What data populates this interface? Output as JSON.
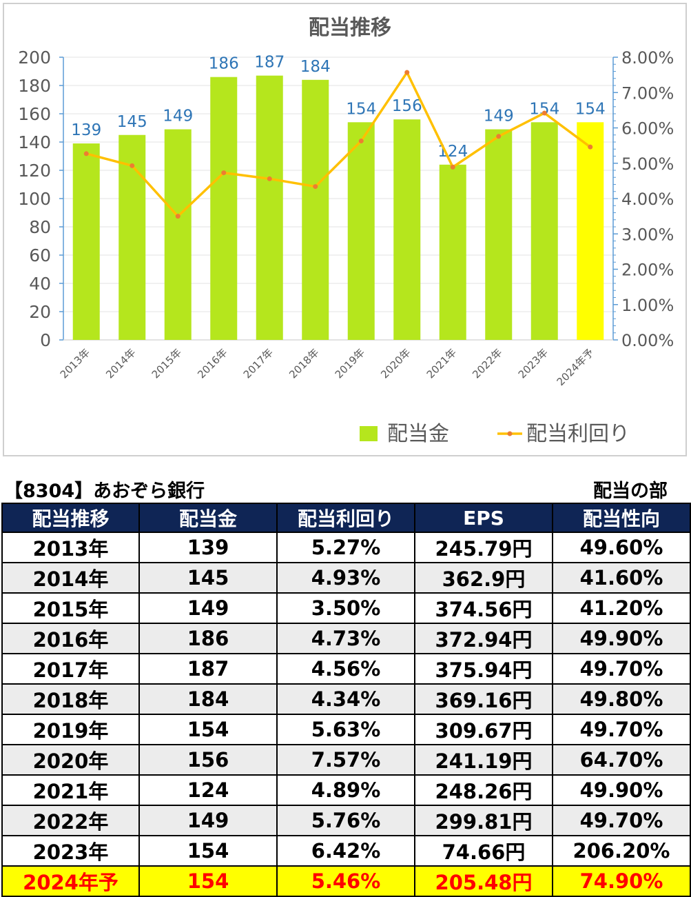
{
  "chart_data": {
    "type": "bar",
    "title": "配当推移",
    "categories": [
      "2013年",
      "2014年",
      "2015年",
      "2016年",
      "2017年",
      "2018年",
      "2019年",
      "2020年",
      "2021年",
      "2022年",
      "2023年",
      "2024年予"
    ],
    "series": [
      {
        "name": "配当金",
        "type": "bar",
        "axis": "left",
        "values": [
          139,
          145,
          149,
          186,
          187,
          184,
          154,
          156,
          124,
          149,
          154,
          154
        ],
        "color": "#b5e61d",
        "highlight_color": "#ffff00",
        "highlight_index": 11
      },
      {
        "name": "配当利回り",
        "type": "line",
        "axis": "right",
        "values": [
          5.27,
          4.93,
          3.5,
          4.73,
          4.56,
          4.34,
          5.63,
          7.57,
          4.89,
          5.76,
          6.42,
          5.46
        ],
        "color": "#ffc000",
        "marker_color": "#ed7d31"
      }
    ],
    "y_left": {
      "min": 0,
      "max": 200,
      "step": 20,
      "ticks": [
        "0",
        "20",
        "40",
        "60",
        "80",
        "100",
        "120",
        "140",
        "160",
        "180",
        "200"
      ]
    },
    "y_right": {
      "min": 0,
      "max": 8,
      "step": 1,
      "ticks": [
        "0.00%",
        "1.00%",
        "2.00%",
        "3.00%",
        "4.00%",
        "5.00%",
        "6.00%",
        "7.00%",
        "8.00%"
      ]
    },
    "data_label_color": "#2e75b6",
    "grid": true,
    "legend": "bottom-right"
  },
  "table": {
    "caption_left": "【8304】あおぞら銀行",
    "caption_right": "配当の部",
    "headers": [
      "配当推移",
      "配当金",
      "配当利回り",
      "EPS",
      "配当性向"
    ],
    "rows": [
      [
        "2013年",
        "139",
        "5.27%",
        "245.79円",
        "49.60%"
      ],
      [
        "2014年",
        "145",
        "4.93%",
        "362.9円",
        "41.60%"
      ],
      [
        "2015年",
        "149",
        "3.50%",
        "374.56円",
        "41.20%"
      ],
      [
        "2016年",
        "186",
        "4.73%",
        "372.94円",
        "49.90%"
      ],
      [
        "2017年",
        "187",
        "4.56%",
        "375.94円",
        "49.70%"
      ],
      [
        "2018年",
        "184",
        "4.34%",
        "369.16円",
        "49.80%"
      ],
      [
        "2019年",
        "154",
        "5.63%",
        "309.67円",
        "49.70%"
      ],
      [
        "2020年",
        "156",
        "7.57%",
        "241.19円",
        "64.70%"
      ],
      [
        "2021年",
        "124",
        "4.89%",
        "248.26円",
        "49.90%"
      ],
      [
        "2022年",
        "149",
        "5.76%",
        "299.81円",
        "49.70%"
      ],
      [
        "2023年",
        "154",
        "6.42%",
        "74.66円",
        "206.20%"
      ],
      [
        "2024年予",
        "154",
        "5.46%",
        "205.48円",
        "74.90%"
      ]
    ],
    "highlight_row": 11,
    "colors": {
      "header_bg": "#0f2555",
      "header_text": "#ffffff",
      "highlight_bg": "#ffff00",
      "highlight_text": "#ff0000",
      "stripe_bg": "#ececec"
    }
  }
}
